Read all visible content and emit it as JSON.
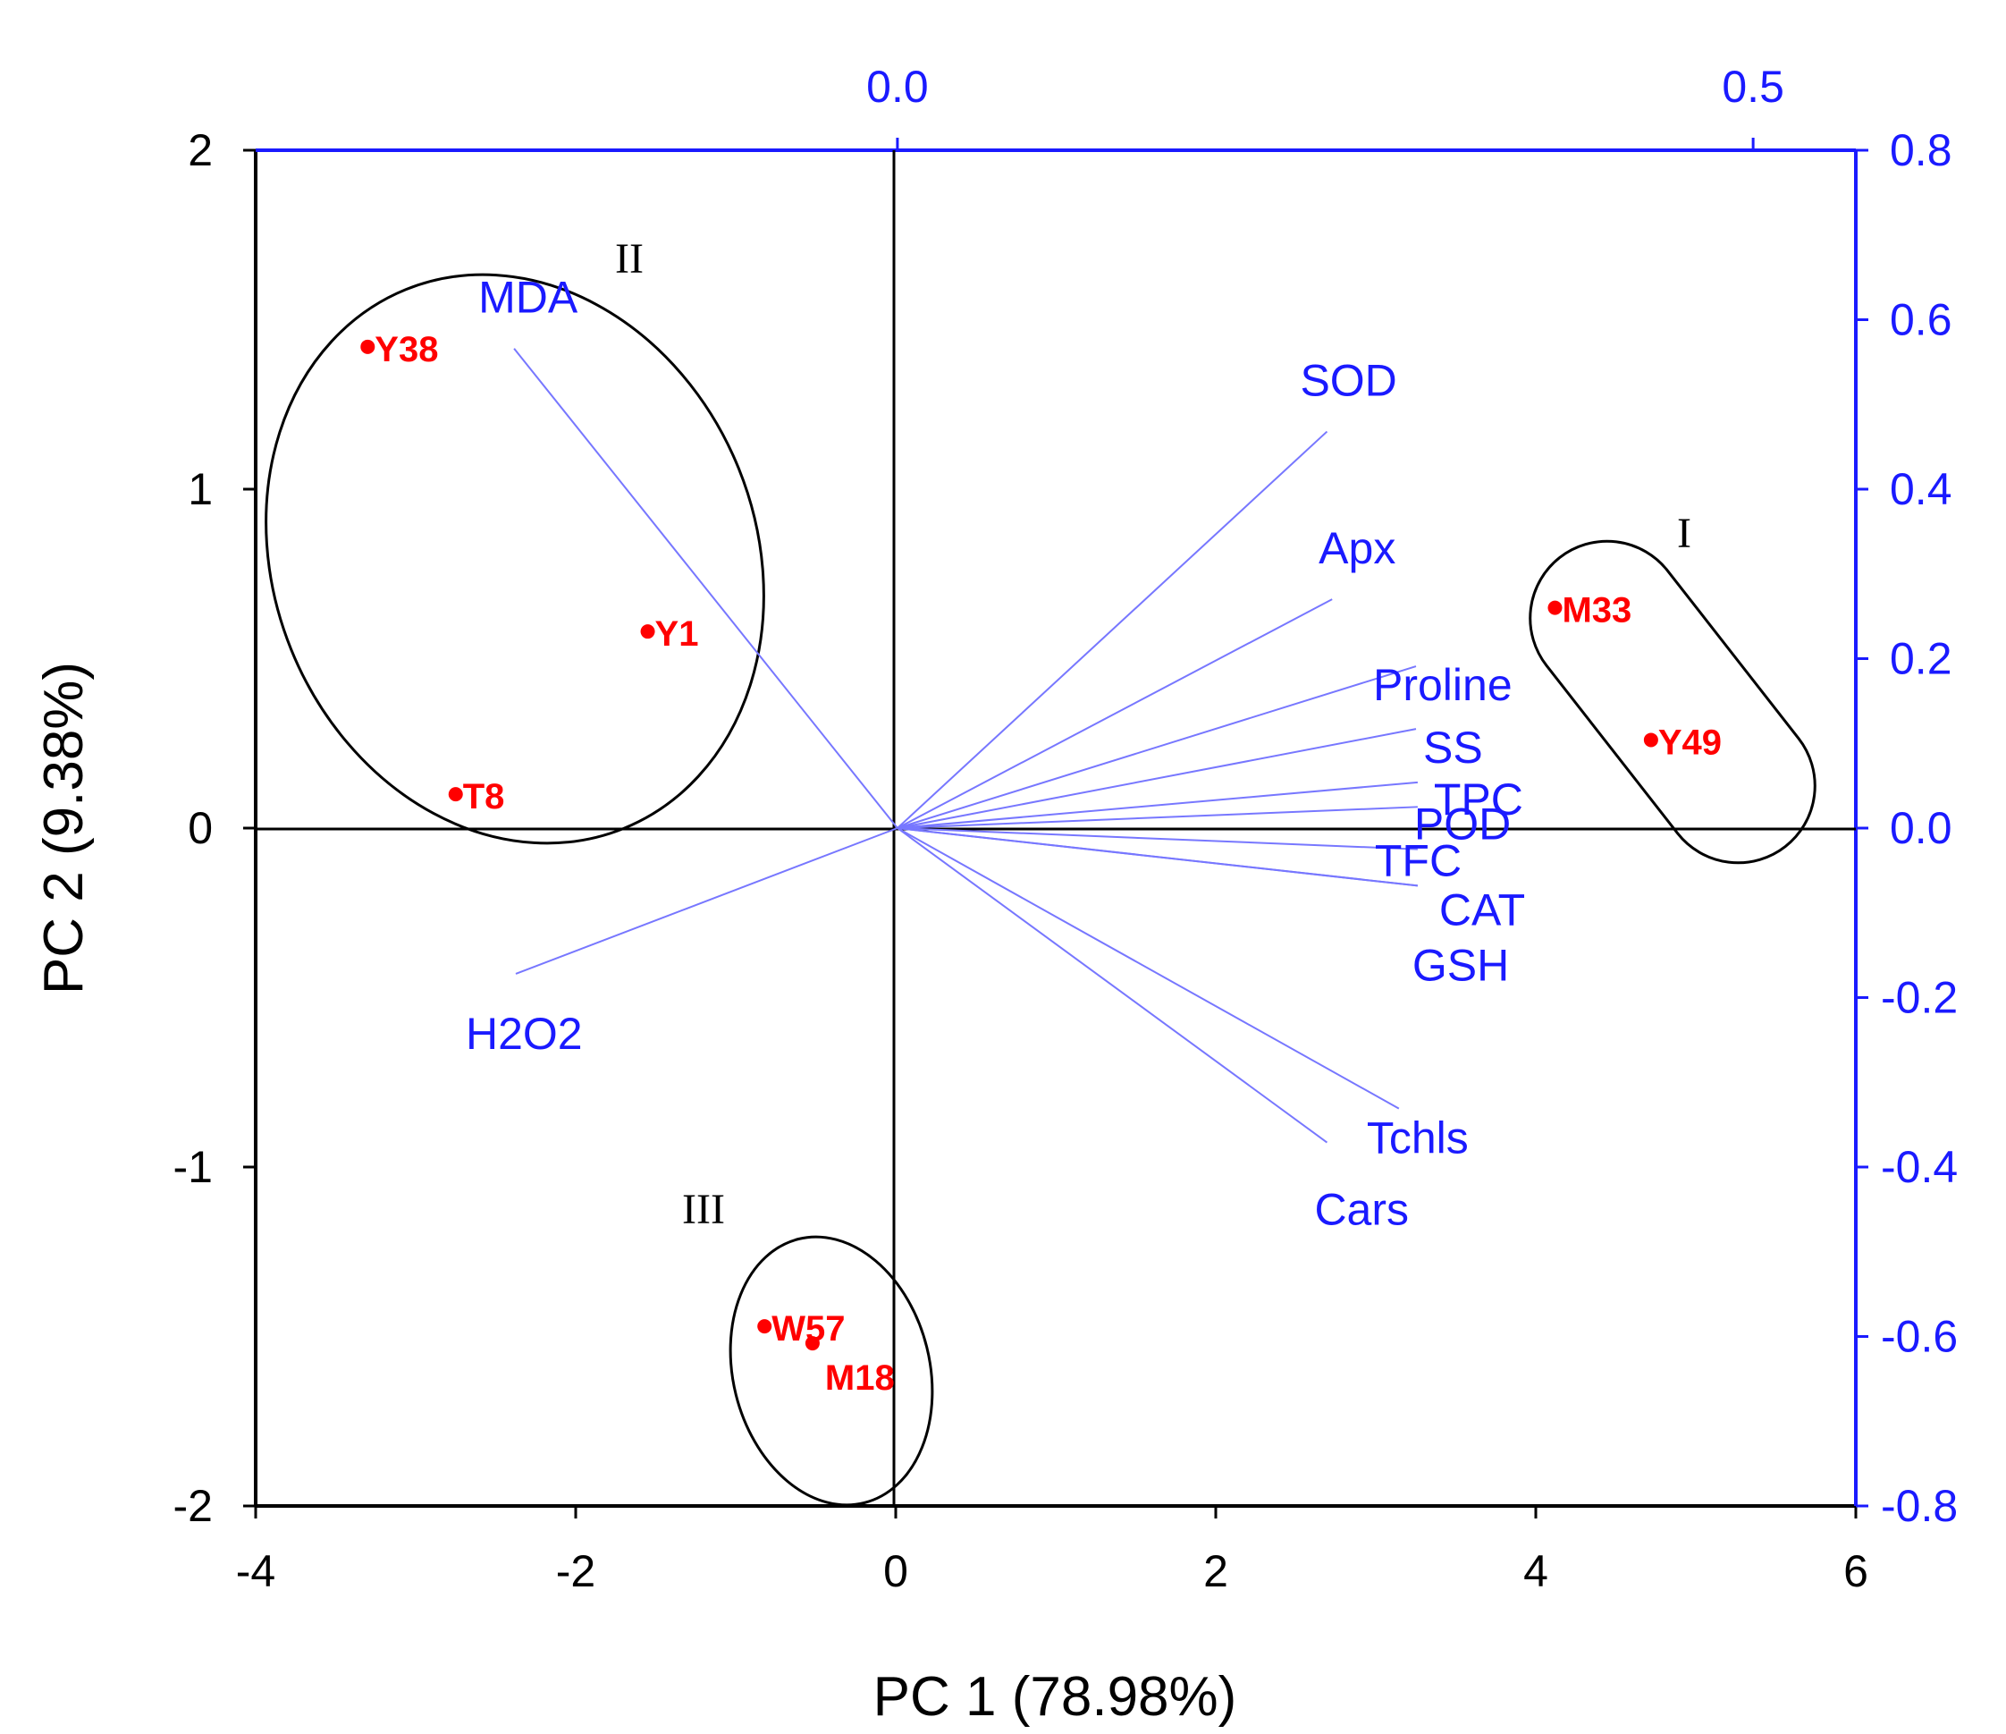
{
  "chart_data": {
    "type": "scatter",
    "subtype": "pca-biplot",
    "xlabel": "PC 1 (78.98%)",
    "ylabel": "PC 2 (9.38%)",
    "xlim": [
      -4,
      6
    ],
    "ylim": [
      -2,
      2
    ],
    "x_ticks": [
      "-4",
      "-2",
      "0",
      "2",
      "4",
      "6"
    ],
    "y_ticks": [
      "-2",
      "-1",
      "0",
      "1",
      "2"
    ],
    "loading_xlim": [
      -0.375,
      0.56
    ],
    "loading_ylim": [
      -0.8,
      0.8
    ],
    "loading_top_ticks": [
      {
        "label": "0.0",
        "value": 0.0
      },
      {
        "label": "0.5",
        "value": 0.5
      }
    ],
    "loading_right_ticks": [
      {
        "label": "0.8",
        "value": 0.8
      },
      {
        "label": "0.6",
        "value": 0.6
      },
      {
        "label": "0.4",
        "value": 0.4
      },
      {
        "label": "0.2",
        "value": 0.2
      },
      {
        "label": "0.0",
        "value": 0.0
      },
      {
        "label": "-0.2",
        "value": -0.2
      },
      {
        "label": "-0.4",
        "value": -0.4
      },
      {
        "label": "-0.6",
        "value": -0.6
      },
      {
        "label": "-0.8",
        "value": -0.8
      }
    ],
    "scores": [
      {
        "label": "Y38",
        "x": -3.3,
        "y": 1.42
      },
      {
        "label": "Y1",
        "x": -1.55,
        "y": 0.58
      },
      {
        "label": "T8",
        "x": -2.75,
        "y": 0.1
      },
      {
        "label": "M33",
        "x": 4.12,
        "y": 0.65
      },
      {
        "label": "Y49",
        "x": 4.72,
        "y": 0.26
      },
      {
        "label": "W57",
        "x": -0.82,
        "y": -1.47
      },
      {
        "label": "M18",
        "x": -0.52,
        "y": -1.52
      }
    ],
    "loadings": [
      {
        "label": "MDA",
        "x": -0.224,
        "y": 0.566
      },
      {
        "label": "SOD",
        "x": 0.251,
        "y": 0.468
      },
      {
        "label": "Apx",
        "x": 0.254,
        "y": 0.27
      },
      {
        "label": "Proline",
        "x": 0.303,
        "y": 0.191
      },
      {
        "label": "SS",
        "x": 0.303,
        "y": 0.117
      },
      {
        "label": "TPC",
        "x": 0.304,
        "y": 0.054
      },
      {
        "label": "POD",
        "x": 0.304,
        "y": 0.025
      },
      {
        "label": "TFC",
        "x": 0.304,
        "y": -0.025
      },
      {
        "label": "CAT",
        "x": 0.304,
        "y": -0.068
      },
      {
        "label": "GSH",
        "x": 0.304,
        "y": -0.068
      },
      {
        "label": "Tchls",
        "x": 0.293,
        "y": -0.331
      },
      {
        "label": "Cars",
        "x": 0.251,
        "y": -0.371
      },
      {
        "label": "H2O2",
        "x": -0.223,
        "y": -0.172
      }
    ],
    "groups": [
      {
        "label": "I"
      },
      {
        "label": "II"
      },
      {
        "label": "III"
      }
    ],
    "colors": {
      "axes": "#000000",
      "loadings": "#1a1aff",
      "loading_lines": "#7777ff",
      "scores": "#ff0000"
    }
  }
}
